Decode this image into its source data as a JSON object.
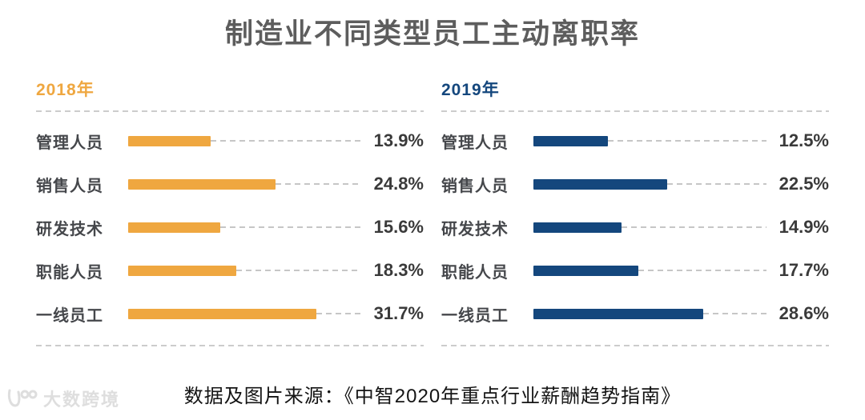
{
  "title": "制造业不同类型员工主动离职率",
  "footer": {
    "source_text": "数据及图片来源：《中智2020年重点行业薪酬趋势指南》"
  },
  "watermark": {
    "brand": "大数跨境",
    "icon": "swoosh-100-icon"
  },
  "colors": {
    "orange_2018": "#EFA740",
    "navy_2019": "#14477D",
    "title_gray": "#5d5d5d",
    "label_gray": "#45474b",
    "value_gray": "#3a3a3a",
    "dash_gray": "#c6c6c6",
    "watermark_gray": "#dedede"
  },
  "chart_data": {
    "type": "bar",
    "orientation": "horizontal",
    "title": "制造业不同类型员工主动离职率",
    "layout": "two side-by-side panels, one per series; dashed leader lines from bar end to value label; dashed rules above and below each panel's bars",
    "categories": [
      "管理人员",
      "销售人员",
      "研发技术",
      "职能人员",
      "一线员工"
    ],
    "series": [
      {
        "name": "2018年",
        "color": "#EFA740",
        "values": [
          13.9,
          24.8,
          15.6,
          18.3,
          31.7
        ]
      },
      {
        "name": "2019年",
        "color": "#14477D",
        "values": [
          12.5,
          22.5,
          14.9,
          17.7,
          28.6
        ]
      }
    ],
    "value_suffix": "%",
    "xlim": [
      0,
      40
    ],
    "grid": false,
    "legend_position": "panel headers above each chart"
  }
}
